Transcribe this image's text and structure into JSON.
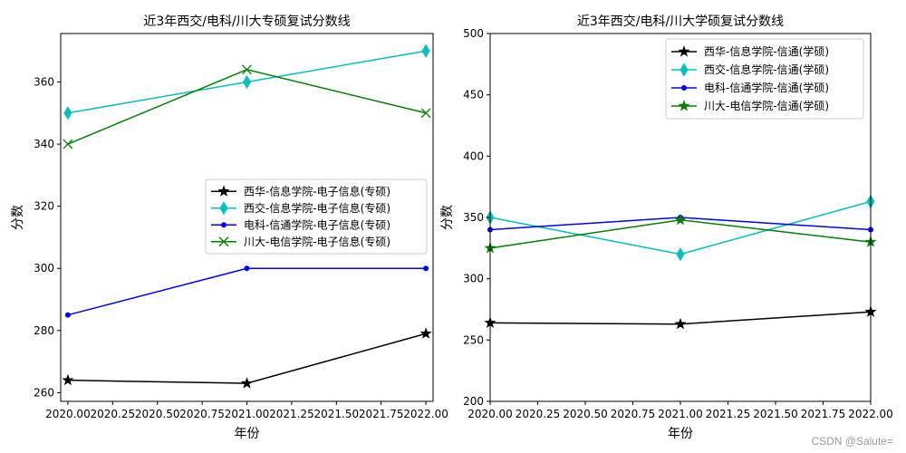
{
  "watermark": "CSDN @Salute=",
  "chart_data": [
    {
      "type": "line",
      "title": "近3年西交/电科/川大专硕复试分数线",
      "xlabel": "年份",
      "ylabel": "分数",
      "x": [
        2020,
        2021,
        2022
      ],
      "xlim": [
        2019.96,
        2022.04
      ],
      "ylim": [
        257.2,
        375.6
      ],
      "xticks": [
        2020.0,
        2020.25,
        2020.5,
        2020.75,
        2021.0,
        2021.25,
        2021.5,
        2021.75,
        2022.0
      ],
      "xtick_labels": [
        "2020.00",
        "2020.25",
        "2020.50",
        "2020.75",
        "2021.00",
        "2021.25",
        "2021.50",
        "2021.75",
        "2022.00"
      ],
      "yticks": [
        260,
        280,
        300,
        320,
        340,
        360
      ],
      "ytick_labels": [
        "260",
        "280",
        "300",
        "320",
        "340",
        "360"
      ],
      "grid": false,
      "legend_position": "center-right",
      "series": [
        {
          "name": "西华-信息学院-电子信息(专硕)",
          "values": [
            264,
            263,
            279
          ],
          "color": "#000000",
          "marker": "star"
        },
        {
          "name": "西交-信息学院-电子信息(专硕)",
          "values": [
            350,
            360,
            370
          ],
          "color": "#00bfbf",
          "marker": "thin_diamond"
        },
        {
          "name": "电科-信通学院-电子信息(专硕)",
          "values": [
            285,
            300,
            300
          ],
          "color": "#0000ff",
          "marker": "dot"
        },
        {
          "name": "川大-电信学院-电子信息(专硕)",
          "values": [
            340,
            364,
            350
          ],
          "color": "#008000",
          "marker": "x"
        }
      ]
    },
    {
      "type": "line",
      "title": "近3年西交/电科/川大学硕复试分数线",
      "xlabel": "年份",
      "ylabel": "分数",
      "x": [
        2020,
        2021,
        2022
      ],
      "xlim": [
        2020.0,
        2022.0
      ],
      "ylim": [
        200,
        500
      ],
      "xticks": [
        2020.0,
        2020.25,
        2020.5,
        2020.75,
        2021.0,
        2021.25,
        2021.5,
        2021.75,
        2022.0
      ],
      "xtick_labels": [
        "2020.00",
        "2020.25",
        "2020.50",
        "2020.75",
        "2021.00",
        "2021.25",
        "2021.50",
        "2021.75",
        "2022.00"
      ],
      "yticks": [
        200,
        250,
        300,
        350,
        400,
        450,
        500
      ],
      "ytick_labels": [
        "200",
        "250",
        "300",
        "350",
        "400",
        "450",
        "500"
      ],
      "grid": false,
      "legend_position": "top-right",
      "series": [
        {
          "name": "西华-信息学院-信通(学硕)",
          "values": [
            264,
            263,
            273
          ],
          "color": "#000000",
          "marker": "star"
        },
        {
          "name": "西交-信息学院-信通(学硕)",
          "values": [
            350,
            320,
            363
          ],
          "color": "#00bfbf",
          "marker": "thin_diamond"
        },
        {
          "name": "电科-信通学院-信通(学硕)",
          "values": [
            340,
            350,
            340
          ],
          "color": "#0000ff",
          "marker": "dot"
        },
        {
          "name": "川大-电信学院-信通(学硕)",
          "values": [
            325,
            348,
            330
          ],
          "color": "#008000",
          "marker": "star"
        }
      ]
    }
  ]
}
